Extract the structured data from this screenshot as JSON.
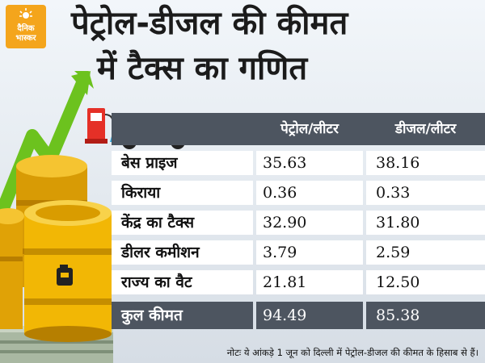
{
  "brand": {
    "line1": "दैनिक",
    "line2": "भास्कर"
  },
  "title": {
    "line1": "पेट्रोल-डीजल की कीमत",
    "line2": "में टैक्स का गणित"
  },
  "table": {
    "headers": [
      "पेट्रोल/लीटर",
      "डीजल/लीटर"
    ],
    "rows": [
      {
        "label": "बेस प्राइज",
        "petrol": "35.63",
        "diesel": "38.16"
      },
      {
        "label": "किराया",
        "petrol": "0.36",
        "diesel": "0.33"
      },
      {
        "label": "केंद्र का टैक्स",
        "petrol": "32.90",
        "diesel": "31.80"
      },
      {
        "label": "डीलर कमीशन",
        "petrol": "3.79",
        "diesel": "2.59"
      },
      {
        "label": "राज्य का वैट",
        "petrol": "21.81",
        "diesel": "12.50"
      }
    ],
    "total": {
      "label": "कुल कीमत",
      "petrol": "94.49",
      "diesel": "85.38"
    }
  },
  "note": "नोटः ये आंकड़े 1 जून को दिल्ली में पेट्रोल-डीजल की कीमत के हिसाब से हैं।",
  "colors": {
    "header_bg": "#4d5560",
    "brand": "#f4a51c",
    "arrow": "#6cc21e",
    "barrel": "#f2b705"
  }
}
